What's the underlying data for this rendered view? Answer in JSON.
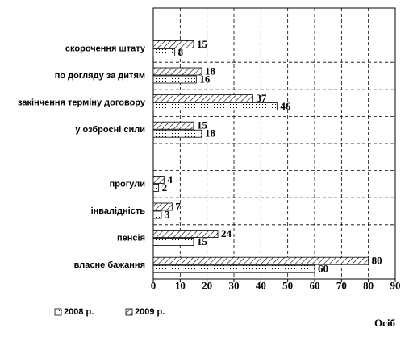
{
  "chart_data": {
    "type": "bar",
    "orientation": "horizontal",
    "x_label": "Осіб",
    "categories": [
      null,
      "скорочення штату",
      "по догляду за дитям",
      "закінчення терміну договору",
      "у озброєні сили",
      null,
      "прогули",
      "інвалідність",
      "пенсія",
      "власне бажання"
    ],
    "series": [
      {
        "name": "2008 р.",
        "color": "#000000",
        "pattern": "dots",
        "values": [
          null,
          8,
          16,
          46,
          18,
          null,
          2,
          3,
          15,
          60
        ]
      },
      {
        "name": "2009 р.",
        "color": "#000000",
        "pattern": "hatch",
        "values": [
          null,
          15,
          18,
          37,
          15,
          null,
          4,
          7,
          24,
          80
        ]
      }
    ],
    "xlim": [
      0,
      90
    ],
    "xticks": [
      0,
      10,
      20,
      30,
      40,
      50,
      60,
      70,
      80,
      90
    ],
    "grid": true,
    "legend": "bottom"
  }
}
